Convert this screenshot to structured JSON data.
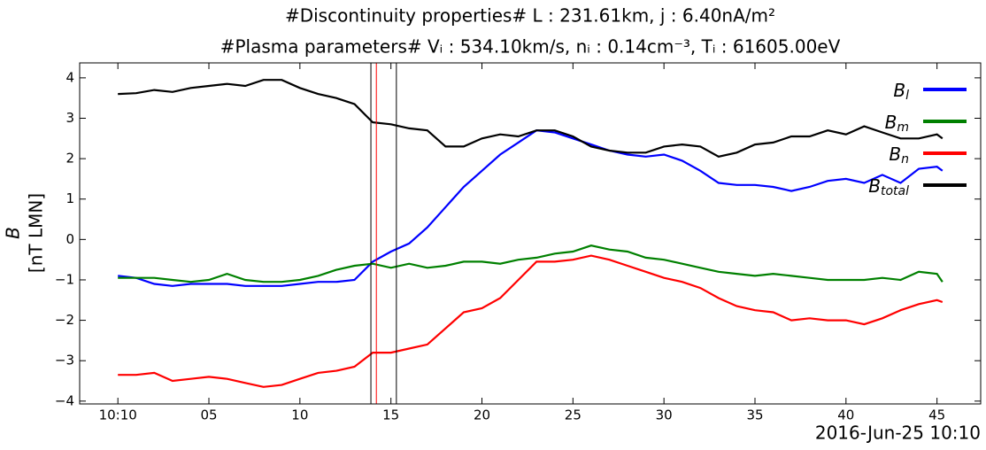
{
  "chart_data": {
    "type": "line",
    "title": [
      "#Discontinuity properties# L : 231.61km, j : 6.40nA/m²",
      "#Plasma parameters# Vᵢ : 534.10km/s, nᵢ : 0.14cm⁻³, Tᵢ : 61605.00eV"
    ],
    "ylabel": [
      "B",
      "[nT LMN]"
    ],
    "xlabel": "2016-Jun-25 10:10",
    "x": [
      0,
      1,
      2,
      3,
      4,
      5,
      6,
      7,
      8,
      9,
      10,
      11,
      12,
      13,
      14,
      15,
      16,
      17,
      18,
      19,
      20,
      21,
      22,
      23,
      24,
      25,
      26,
      27,
      28,
      29,
      30,
      31,
      32,
      33,
      34,
      35,
      36,
      37,
      38,
      39,
      40,
      41,
      42,
      43,
      44,
      45,
      45.3
    ],
    "xlim": [
      -2.1,
      47.4
    ],
    "xticks": [
      {
        "value": 0,
        "label": "10:10"
      },
      {
        "value": 5,
        "label": "05"
      },
      10,
      15,
      20,
      25,
      30,
      35,
      40,
      45
    ],
    "ylim": [
      -4.07,
      4.37
    ],
    "yticks": [
      {
        "value": -4,
        "label": "−4"
      },
      {
        "value": -3,
        "label": "−3"
      },
      {
        "value": -2,
        "label": "−2"
      },
      {
        "value": -1,
        "label": "−1"
      },
      0,
      1,
      2,
      3,
      4
    ],
    "legend": "upper right",
    "series": [
      {
        "name": "Bl",
        "color": "#0000ff",
        "values": [
          -0.9,
          -0.95,
          -1.1,
          -1.15,
          -1.1,
          -1.1,
          -1.1,
          -1.15,
          -1.15,
          -1.15,
          -1.1,
          -1.05,
          -1.05,
          -1.0,
          -0.55,
          -0.3,
          -0.1,
          0.3,
          0.8,
          1.3,
          1.7,
          2.1,
          2.4,
          2.7,
          2.65,
          2.5,
          2.35,
          2.2,
          2.1,
          2.05,
          2.1,
          1.95,
          1.7,
          1.4,
          1.35,
          1.35,
          1.3,
          1.2,
          1.3,
          1.45,
          1.5,
          1.4,
          1.6,
          1.4,
          1.75,
          1.8,
          1.7
        ]
      },
      {
        "name": "Bm",
        "color": "#008000",
        "values": [
          -0.95,
          -0.95,
          -0.95,
          -1.0,
          -1.05,
          -1.0,
          -0.85,
          -1.0,
          -1.05,
          -1.05,
          -1.0,
          -0.9,
          -0.75,
          -0.65,
          -0.6,
          -0.7,
          -0.6,
          -0.7,
          -0.65,
          -0.55,
          -0.55,
          -0.6,
          -0.5,
          -0.45,
          -0.35,
          -0.3,
          -0.15,
          -0.25,
          -0.3,
          -0.45,
          -0.5,
          -0.6,
          -0.7,
          -0.8,
          -0.85,
          -0.9,
          -0.85,
          -0.9,
          -0.95,
          -1.0,
          -1.0,
          -1.0,
          -0.95,
          -1.0,
          -0.8,
          -0.85,
          -1.05
        ]
      },
      {
        "name": "Bn",
        "color": "#ff0000",
        "values": [
          -3.35,
          -3.35,
          -3.3,
          -3.5,
          -3.45,
          -3.4,
          -3.45,
          -3.55,
          -3.65,
          -3.6,
          -3.45,
          -3.3,
          -3.25,
          -3.15,
          -2.8,
          -2.8,
          -2.7,
          -2.6,
          -2.2,
          -1.8,
          -1.7,
          -1.45,
          -1.0,
          -0.55,
          -0.55,
          -0.5,
          -0.4,
          -0.5,
          -0.65,
          -0.8,
          -0.95,
          -1.05,
          -1.2,
          -1.45,
          -1.65,
          -1.75,
          -1.8,
          -2.0,
          -1.95,
          -2.0,
          -2.0,
          -2.1,
          -1.95,
          -1.75,
          -1.6,
          -1.5,
          -1.55
        ]
      },
      {
        "name": "Btotal",
        "color": "#000000",
        "values": [
          3.6,
          3.62,
          3.7,
          3.65,
          3.75,
          3.8,
          3.85,
          3.8,
          3.95,
          3.95,
          3.75,
          3.6,
          3.5,
          3.35,
          2.9,
          2.85,
          2.75,
          2.7,
          2.3,
          2.3,
          2.5,
          2.6,
          2.55,
          2.7,
          2.7,
          2.55,
          2.3,
          2.2,
          2.15,
          2.15,
          2.3,
          2.35,
          2.3,
          2.05,
          2.15,
          2.35,
          2.4,
          2.55,
          2.55,
          2.7,
          2.6,
          2.8,
          2.65,
          2.5,
          2.5,
          2.6,
          2.5
        ]
      }
    ],
    "vlines": [
      {
        "x": 13.9,
        "color": "#000000"
      },
      {
        "x": 14.2,
        "color": "#ff0000"
      },
      {
        "x": 15.3,
        "color": "#000000"
      }
    ]
  }
}
